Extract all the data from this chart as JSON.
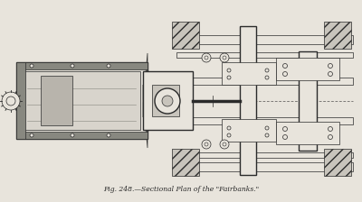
{
  "title": "Fig. 248.—Sectional Plan of the \"Fairbanks.\"",
  "bg_color": "#e8e4dc",
  "line_color": "#2a2a2a",
  "hatch_color": "#555555",
  "fig_width": 4.0,
  "fig_height": 2.24,
  "dpi": 100
}
